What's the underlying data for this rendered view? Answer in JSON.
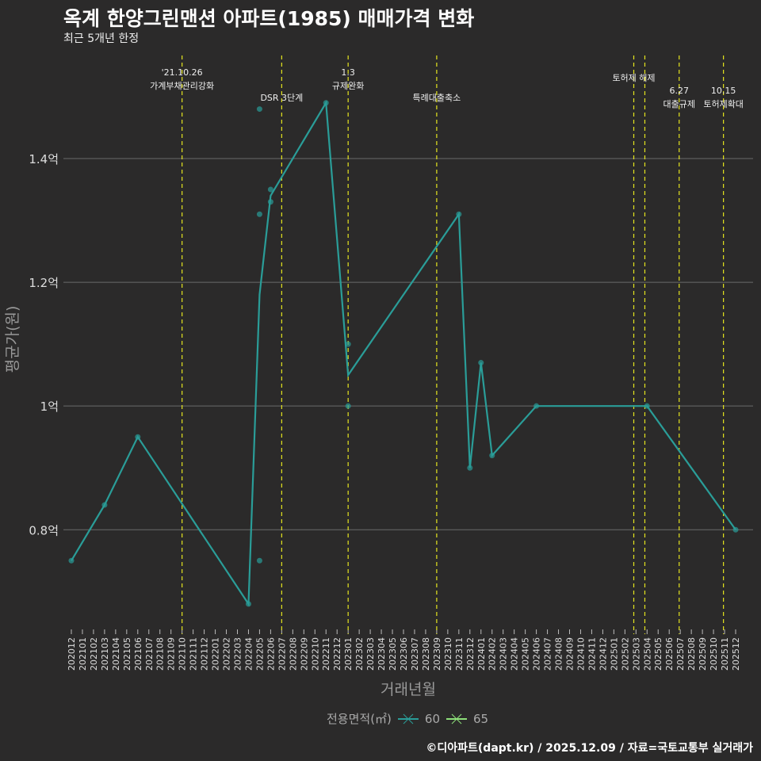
{
  "header": {
    "title": "옥계 한양그린맨션 아파트(1985) 매매가격 변화",
    "subtitle": "최근 5개년 한정"
  },
  "caption": "©디아파트(dapt.kr) / 2025.12.09 / 자료=국토교통부 실거래가",
  "colors": {
    "s60": "#2a9d98",
    "s65": "#8ee07a",
    "event": "#e5e51f",
    "grid": "#6a6a6a"
  },
  "chart_data": {
    "type": "line",
    "title": "옥계 한양그린맨션 아파트(1985) 매매가격 변화",
    "xlabel": "거래년월",
    "ylabel": "평균가(원)",
    "ylim": [
      0.644,
      1.573
    ],
    "yticks": [
      {
        "v": 0.8,
        "label": "0.8억"
      },
      {
        "v": 1.0,
        "label": "1억"
      },
      {
        "v": 1.2,
        "label": "1.2억"
      },
      {
        "v": 1.4,
        "label": "1.4억"
      }
    ],
    "x_start": "202012",
    "x_months": 61,
    "legend": {
      "title": "전용면적(㎡)",
      "entries": [
        "60",
        "65"
      ],
      "placement": "bottom"
    },
    "series": [
      {
        "name": "60",
        "line": [
          [
            0,
            0.75
          ],
          [
            3,
            0.84
          ],
          [
            6,
            0.95
          ],
          [
            16,
            0.68
          ],
          [
            17,
            1.18
          ],
          [
            18,
            1.34
          ],
          [
            23,
            1.49
          ],
          [
            25,
            1.05
          ],
          [
            35,
            1.31
          ],
          [
            36,
            0.9
          ],
          [
            37,
            1.07
          ],
          [
            38,
            0.92
          ],
          [
            42,
            1.0
          ],
          [
            52,
            1.0
          ],
          [
            60,
            0.8
          ]
        ],
        "points": [
          [
            0,
            0.75
          ],
          [
            3,
            0.84
          ],
          [
            6,
            0.95
          ],
          [
            16,
            0.68
          ],
          [
            17,
            1.48
          ],
          [
            17,
            1.31
          ],
          [
            17,
            0.75
          ],
          [
            18,
            1.35
          ],
          [
            18,
            1.33
          ],
          [
            23,
            1.49
          ],
          [
            25,
            1.1
          ],
          [
            25,
            1.0
          ],
          [
            35,
            1.31
          ],
          [
            36,
            0.9
          ],
          [
            37,
            1.07
          ],
          [
            38,
            0.92
          ],
          [
            42,
            1.0
          ],
          [
            52,
            1.0
          ],
          [
            60,
            0.8
          ]
        ]
      },
      {
        "name": "65",
        "line": [],
        "points": []
      }
    ],
    "events": [
      {
        "x": 10,
        "lines": [
          "'21.10.26",
          "가계부채관리강화"
        ],
        "row": 0
      },
      {
        "x": 19,
        "lines": [
          "DSR 3단계"
        ],
        "row": 2
      },
      {
        "x": 25,
        "lines": [
          "1.3",
          "규제완화"
        ],
        "row": 0
      },
      {
        "x": 33,
        "lines": [
          "특례대출축소"
        ],
        "row": 2
      },
      {
        "x": 50.8,
        "lines": [
          "토허제 해제"
        ],
        "row": 1
      },
      {
        "x": 51.8,
        "lines": [],
        "row": 1
      },
      {
        "x": 54.9,
        "lines": [
          "6.27",
          "대출규제"
        ],
        "row": 1.7
      },
      {
        "x": 58.9,
        "lines": [
          "10.15",
          "토허제확대"
        ],
        "row": 1.7
      }
    ]
  }
}
